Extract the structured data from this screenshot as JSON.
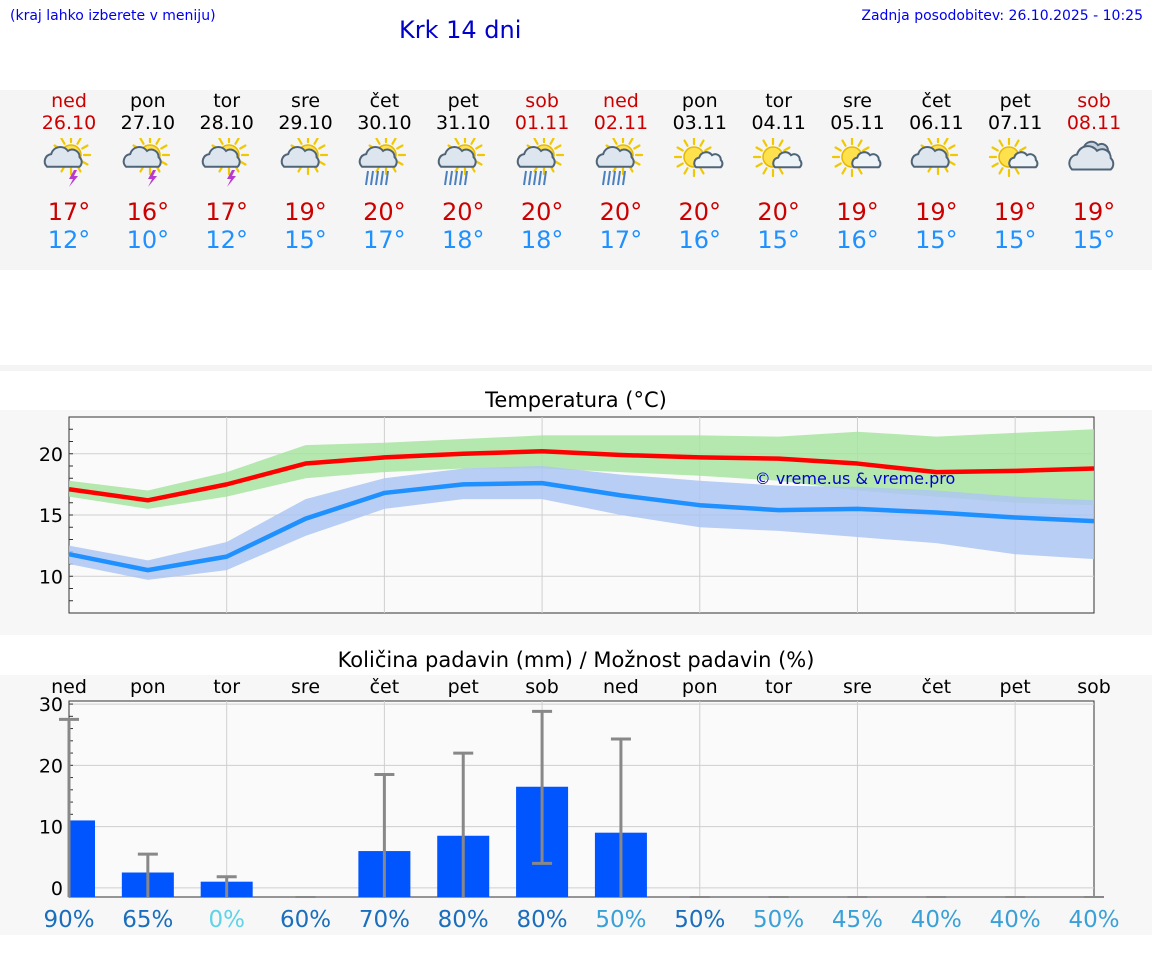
{
  "header": {
    "menu_hint": "(kraj lahko izberete v meniju)",
    "title": "Krk 14 dni",
    "last_update": "Zadnja posodobitev: 26.10.2025 - 10:25"
  },
  "days": [
    {
      "name": "ned",
      "date": "26.10",
      "weekend": true,
      "icon": "sun-cloud-thunder-icon",
      "tmax": "17°",
      "tmin": "12°"
    },
    {
      "name": "pon",
      "date": "27.10",
      "weekend": false,
      "icon": "sun-cloud-thunder-icon",
      "tmax": "16°",
      "tmin": "10°"
    },
    {
      "name": "tor",
      "date": "28.10",
      "weekend": false,
      "icon": "sun-cloud-thunder-icon",
      "tmax": "17°",
      "tmin": "12°"
    },
    {
      "name": "sre",
      "date": "29.10",
      "weekend": false,
      "icon": "sun-cloud-icon",
      "tmax": "19°",
      "tmin": "15°"
    },
    {
      "name": "čet",
      "date": "30.10",
      "weekend": false,
      "icon": "sun-cloud-rain-icon",
      "tmax": "20°",
      "tmin": "17°"
    },
    {
      "name": "pet",
      "date": "31.10",
      "weekend": false,
      "icon": "sun-cloud-rain-icon",
      "tmax": "20°",
      "tmin": "18°"
    },
    {
      "name": "sob",
      "date": "01.11",
      "weekend": true,
      "icon": "sun-cloud-rain-icon",
      "tmax": "20°",
      "tmin": "18°"
    },
    {
      "name": "ned",
      "date": "02.11",
      "weekend": true,
      "icon": "sun-cloud-rain-icon",
      "tmax": "20°",
      "tmin": "17°"
    },
    {
      "name": "pon",
      "date": "03.11",
      "weekend": false,
      "icon": "sun-small-cloud-icon",
      "tmax": "20°",
      "tmin": "16°"
    },
    {
      "name": "tor",
      "date": "04.11",
      "weekend": false,
      "icon": "sun-small-cloud-icon",
      "tmax": "20°",
      "tmin": "15°"
    },
    {
      "name": "sre",
      "date": "05.11",
      "weekend": false,
      "icon": "sun-small-cloud-icon",
      "tmax": "19°",
      "tmin": "16°"
    },
    {
      "name": "čet",
      "date": "06.11",
      "weekend": false,
      "icon": "sun-cloud-icon",
      "tmax": "19°",
      "tmin": "15°"
    },
    {
      "name": "pet",
      "date": "07.11",
      "weekend": false,
      "icon": "sun-small-cloud-icon",
      "tmax": "19°",
      "tmin": "15°"
    },
    {
      "name": "sob",
      "date": "08.11",
      "weekend": true,
      "icon": "cloudy-icon",
      "tmax": "19°",
      "tmin": "15°"
    }
  ],
  "colors": {
    "max_line": "#ff0000",
    "max_band": "#a8e4a0",
    "min_line": "#1e90ff",
    "min_band": "#adc6f2",
    "overlap_band": "#7dc4a6",
    "precip_bar": "#0055ff",
    "whisker": "#888888",
    "weekend": "#cc0000",
    "tmax_text": "#cc0000",
    "tmin_text": "#1e90ff"
  },
  "chart_data": [
    {
      "type": "line",
      "title": "Temperatura (°C)",
      "watermark": "© vreme.us & vreme.pro",
      "x": [
        0,
        1,
        2,
        3,
        4,
        5,
        6,
        7,
        8,
        9,
        10,
        11,
        12,
        13
      ],
      "ylim": [
        7,
        23
      ],
      "yticks": [
        10,
        15,
        20
      ],
      "grid": true,
      "series": [
        {
          "name": "max",
          "values": [
            17.1,
            16.2,
            17.5,
            19.2,
            19.7,
            20.0,
            20.2,
            19.9,
            19.7,
            19.6,
            19.2,
            18.5,
            18.6,
            18.8
          ],
          "band_low": [
            16.5,
            15.5,
            16.5,
            18.0,
            18.5,
            18.8,
            18.8,
            18.5,
            18.2,
            17.8,
            17.0,
            16.5,
            16.0,
            15.8
          ],
          "band_high": [
            17.8,
            17.0,
            18.5,
            20.7,
            20.9,
            21.2,
            21.5,
            21.5,
            21.5,
            21.4,
            21.8,
            21.4,
            21.7,
            22.0
          ]
        },
        {
          "name": "min",
          "values": [
            11.8,
            10.5,
            11.6,
            14.7,
            16.8,
            17.5,
            17.6,
            16.6,
            15.8,
            15.4,
            15.5,
            15.2,
            14.8,
            14.5
          ],
          "band_low": [
            11.0,
            9.7,
            10.5,
            13.3,
            15.5,
            16.3,
            16.3,
            15.0,
            14.0,
            13.7,
            13.2,
            12.7,
            11.8,
            11.4
          ],
          "band_high": [
            12.5,
            11.3,
            12.8,
            16.3,
            18.0,
            18.8,
            19.0,
            18.3,
            17.8,
            17.4,
            17.3,
            17.0,
            16.5,
            16.2
          ]
        }
      ]
    },
    {
      "type": "bar",
      "title": "Količina padavin (mm) / Možnost padavin (%)",
      "categories": [
        "ned",
        "pon",
        "tor",
        "sre",
        "čet",
        "pet",
        "sob",
        "ned",
        "pon",
        "tor",
        "sre",
        "čet",
        "pet",
        "sob"
      ],
      "values": [
        11,
        2.5,
        1,
        0,
        6,
        8.5,
        16.5,
        9,
        0,
        0,
        0,
        0,
        0,
        0
      ],
      "error_low": [
        0,
        0,
        0,
        0,
        0,
        0,
        4,
        0,
        0,
        0,
        0,
        0,
        0,
        0
      ],
      "error_high": [
        27.5,
        5.5,
        1.8,
        0,
        18.5,
        22,
        28.8,
        24.3,
        0,
        0,
        0,
        0,
        0,
        0
      ],
      "ylim": [
        -1.5,
        30.5
      ],
      "yticks": [
        0,
        10,
        20,
        30
      ],
      "probability": [
        "90%",
        "65%",
        "0%",
        "60%",
        "70%",
        "80%",
        "80%",
        "50%",
        "50%",
        "50%",
        "45%",
        "40%",
        "40%",
        "40%"
      ],
      "probability_colors": [
        "#1a6ebd",
        "#1a6ebd",
        "#5fd3e8",
        "#1a6ebd",
        "#1a6ebd",
        "#1a6ebd",
        "#1a6ebd",
        "#3aa0d8",
        "#1a6ebd",
        "#3aa0d8",
        "#3aa0d8",
        "#3aa0d8",
        "#3aa0d8",
        "#3aa0d8"
      ]
    }
  ]
}
